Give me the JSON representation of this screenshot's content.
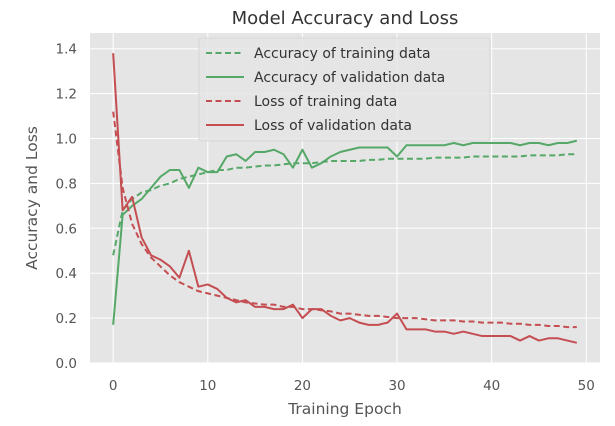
{
  "chart_data": {
    "type": "line",
    "title": "Model Accuracy and Loss",
    "xlabel": "Training Epoch",
    "ylabel": "Accuracy and Loss",
    "xlim": [
      -2.45,
      51.45
    ],
    "ylim": [
      0.0,
      1.47
    ],
    "xticks": [
      "0",
      "10",
      "20",
      "30",
      "40",
      "50"
    ],
    "yticks": [
      "0.0",
      "0.2",
      "0.4",
      "0.6",
      "0.8",
      "1.0",
      "1.2",
      "1.4"
    ],
    "xtick_values": [
      0,
      10,
      20,
      30,
      40,
      50
    ],
    "ytick_values": [
      0.0,
      0.2,
      0.4,
      0.6,
      0.8,
      1.0,
      1.2,
      1.4
    ],
    "grid": true,
    "legend_position": "top-center",
    "series": [
      {
        "name": "Accuracy of training data",
        "color": "#55a868",
        "style": "dashed",
        "x": [
          0,
          1,
          2,
          3,
          4,
          5,
          6,
          7,
          8,
          9,
          10,
          11,
          12,
          13,
          14,
          15,
          16,
          17,
          18,
          19,
          20,
          21,
          22,
          23,
          24,
          25,
          26,
          27,
          28,
          29,
          30,
          31,
          32,
          33,
          34,
          35,
          36,
          37,
          38,
          39,
          40,
          41,
          42,
          43,
          44,
          45,
          46,
          47,
          48,
          49
        ],
        "values": [
          0.48,
          0.68,
          0.73,
          0.76,
          0.77,
          0.79,
          0.8,
          0.82,
          0.83,
          0.84,
          0.85,
          0.86,
          0.86,
          0.87,
          0.87,
          0.875,
          0.88,
          0.88,
          0.885,
          0.89,
          0.89,
          0.89,
          0.895,
          0.9,
          0.9,
          0.9,
          0.9,
          0.905,
          0.905,
          0.91,
          0.91,
          0.91,
          0.91,
          0.91,
          0.915,
          0.915,
          0.915,
          0.915,
          0.92,
          0.92,
          0.92,
          0.92,
          0.92,
          0.92,
          0.925,
          0.925,
          0.925,
          0.925,
          0.93,
          0.93
        ]
      },
      {
        "name": "Accuracy of validation data",
        "color": "#55a868",
        "style": "solid",
        "x": [
          0,
          1,
          2,
          3,
          4,
          5,
          6,
          7,
          8,
          9,
          10,
          11,
          12,
          13,
          14,
          15,
          16,
          17,
          18,
          19,
          20,
          21,
          22,
          23,
          24,
          25,
          26,
          27,
          28,
          29,
          30,
          31,
          32,
          33,
          34,
          35,
          36,
          37,
          38,
          39,
          40,
          41,
          42,
          43,
          44,
          45,
          46,
          47,
          48,
          49
        ],
        "values": [
          0.17,
          0.66,
          0.7,
          0.73,
          0.78,
          0.83,
          0.86,
          0.86,
          0.78,
          0.87,
          0.85,
          0.85,
          0.92,
          0.93,
          0.9,
          0.94,
          0.94,
          0.95,
          0.93,
          0.87,
          0.95,
          0.87,
          0.89,
          0.92,
          0.94,
          0.95,
          0.96,
          0.96,
          0.96,
          0.96,
          0.92,
          0.97,
          0.97,
          0.97,
          0.97,
          0.97,
          0.98,
          0.97,
          0.98,
          0.98,
          0.98,
          0.98,
          0.98,
          0.97,
          0.98,
          0.98,
          0.97,
          0.98,
          0.98,
          0.99
        ]
      },
      {
        "name": "Loss of training data",
        "color": "#c44e52",
        "style": "dashed",
        "x": [
          0,
          1,
          2,
          3,
          4,
          5,
          6,
          7,
          8,
          9,
          10,
          11,
          12,
          13,
          14,
          15,
          16,
          17,
          18,
          19,
          20,
          21,
          22,
          23,
          24,
          25,
          26,
          27,
          28,
          29,
          30,
          31,
          32,
          33,
          34,
          35,
          36,
          37,
          38,
          39,
          40,
          41,
          42,
          43,
          44,
          45,
          46,
          47,
          48,
          49
        ],
        "values": [
          1.12,
          0.78,
          0.62,
          0.53,
          0.47,
          0.43,
          0.39,
          0.36,
          0.34,
          0.32,
          0.31,
          0.3,
          0.29,
          0.28,
          0.27,
          0.265,
          0.26,
          0.26,
          0.25,
          0.25,
          0.24,
          0.24,
          0.235,
          0.23,
          0.22,
          0.22,
          0.215,
          0.21,
          0.21,
          0.205,
          0.2,
          0.2,
          0.2,
          0.195,
          0.19,
          0.19,
          0.19,
          0.185,
          0.185,
          0.18,
          0.18,
          0.18,
          0.175,
          0.175,
          0.17,
          0.17,
          0.165,
          0.165,
          0.16,
          0.16
        ]
      },
      {
        "name": "Loss of validation data",
        "color": "#c44e52",
        "style": "solid",
        "x": [
          0,
          1,
          2,
          3,
          4,
          5,
          6,
          7,
          8,
          9,
          10,
          11,
          12,
          13,
          14,
          15,
          16,
          17,
          18,
          19,
          20,
          21,
          22,
          23,
          24,
          25,
          26,
          27,
          28,
          29,
          30,
          31,
          32,
          33,
          34,
          35,
          36,
          37,
          38,
          39,
          40,
          41,
          42,
          43,
          44,
          45,
          46,
          47,
          48,
          49
        ],
        "values": [
          1.38,
          0.68,
          0.74,
          0.56,
          0.48,
          0.46,
          0.43,
          0.38,
          0.5,
          0.34,
          0.35,
          0.33,
          0.29,
          0.27,
          0.28,
          0.25,
          0.25,
          0.24,
          0.24,
          0.26,
          0.2,
          0.24,
          0.24,
          0.21,
          0.19,
          0.2,
          0.18,
          0.17,
          0.17,
          0.18,
          0.22,
          0.15,
          0.15,
          0.15,
          0.14,
          0.14,
          0.13,
          0.14,
          0.13,
          0.12,
          0.12,
          0.12,
          0.12,
          0.1,
          0.12,
          0.1,
          0.11,
          0.11,
          0.1,
          0.09
        ]
      }
    ]
  }
}
